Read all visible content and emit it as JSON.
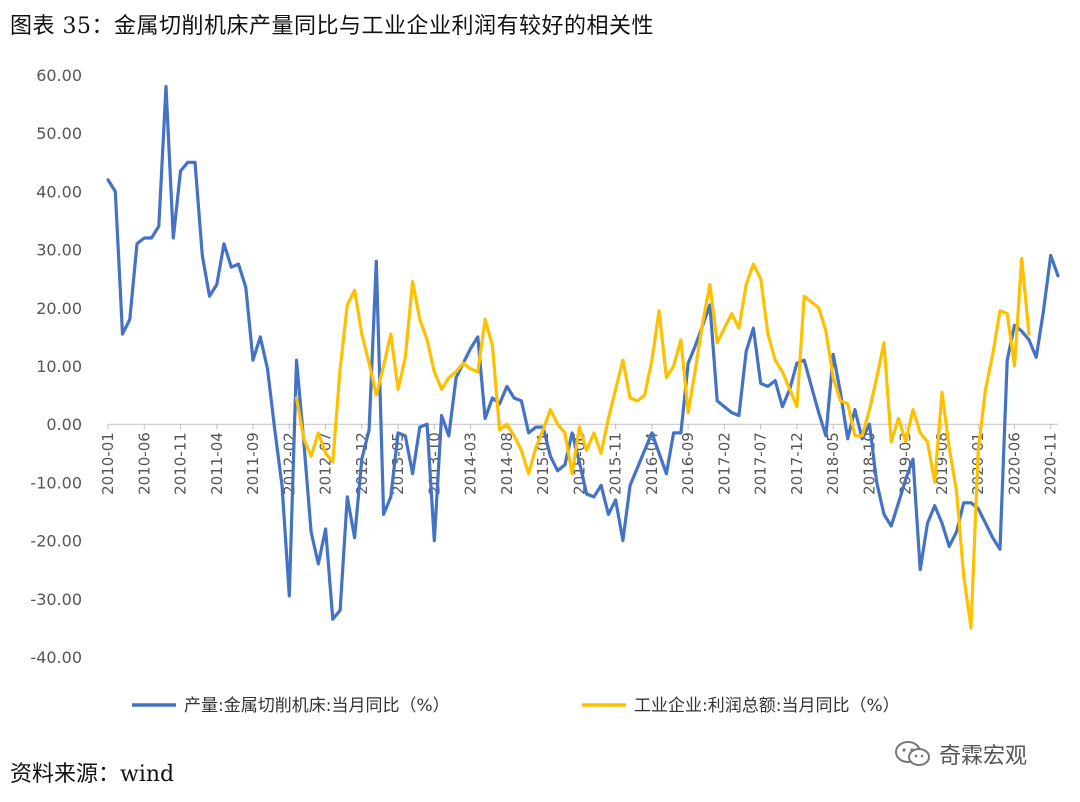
{
  "title": "图表 35：金属切削机床产量同比与工业企业利润有较好的相关性",
  "source": "资料来源：wind",
  "watermark": {
    "text": "奇霖宏观",
    "icon": "wechat-icon"
  },
  "chart_data": {
    "type": "line",
    "ylim": [
      -40,
      60
    ],
    "yticks": [
      "60.00",
      "50.00",
      "40.00",
      "30.00",
      "20.00",
      "10.00",
      "0.00",
      "-10.00",
      "-20.00",
      "-30.00",
      "-40.00"
    ],
    "xticks": [
      "2010-01",
      "2010-06",
      "2010-11",
      "2011-04",
      "2011-09",
      "2012-02",
      "2012-07",
      "2012-12",
      "2013-05",
      "2013-10",
      "2014-03",
      "2014-08",
      "2015-01",
      "2015-06",
      "2015-11",
      "2016-04",
      "2016-09",
      "2017-02",
      "2017-07",
      "2017-12",
      "2018-05",
      "2018-10",
      "2019-03",
      "2019-08",
      "2020-01",
      "2020-06",
      "2020-11"
    ],
    "x_start": "2010-01",
    "series": [
      {
        "name": "产量:金属切削机床:当月同比（%）",
        "color": "#4472C4",
        "values": [
          42,
          40,
          15.5,
          18,
          31,
          32,
          32,
          34,
          58,
          32,
          43.5,
          45,
          45,
          29,
          22,
          24,
          31,
          27,
          27.5,
          23.5,
          11,
          15,
          9.5,
          -1,
          -10.5,
          -29.5,
          11,
          -3,
          -18.5,
          -24,
          -18,
          -33.5,
          -32,
          -12.5,
          -19.5,
          -6,
          -1,
          28,
          -15.5,
          -12.5,
          -1.5,
          -2,
          -8.5,
          -0.5,
          0,
          -20,
          1.5,
          -2,
          8,
          10.5,
          13,
          15,
          1,
          4.5,
          3.5,
          6.5,
          4.5,
          4,
          -1.5,
          -0.5,
          -0.5,
          -5.5,
          -8,
          -7,
          -1.5,
          -6.5,
          -12,
          -12.5,
          -10.5,
          -15.5,
          -13,
          -20,
          -10.5,
          -7.5,
          -4.5,
          -1.5,
          -5,
          -8.5,
          -1.5,
          -1.5,
          10.5,
          13.5,
          17,
          20.5,
          4,
          3,
          2,
          1.5,
          12.5,
          16.5,
          7,
          6.5,
          7.5,
          3,
          6,
          10.5,
          11,
          6.5,
          2,
          -2,
          12,
          5.5,
          -2.5,
          2.5,
          -2.5,
          0,
          -10,
          -15.5,
          -17.5,
          -13.5,
          -9.5,
          -6,
          -25,
          -17,
          -14,
          -17,
          -21,
          -18.5,
          -13.5,
          -13.5,
          -14.5,
          -17,
          -19.5,
          -21.5,
          11,
          17,
          16,
          14.5,
          11.5,
          19.5,
          29,
          25.5
        ]
      },
      {
        "name": "工业企业:利润总额:当月同比（%）",
        "color": "#FFC000",
        "values": [
          null,
          null,
          null,
          null,
          null,
          null,
          null,
          null,
          null,
          null,
          null,
          null,
          null,
          null,
          null,
          null,
          null,
          null,
          null,
          null,
          null,
          null,
          null,
          null,
          null,
          null,
          4.5,
          -2.5,
          -5.5,
          -1.5,
          -5,
          -6.5,
          9.5,
          20.5,
          23,
          15.5,
          10.5,
          5,
          10,
          15.5,
          6,
          11.5,
          24.5,
          18,
          14.5,
          9,
          6,
          8,
          9,
          10.5,
          9.5,
          9,
          18,
          13.5,
          -1,
          0,
          -2,
          -4.5,
          -8.5,
          -4,
          -1,
          2.5,
          0,
          -1.5,
          -8.5,
          -0.5,
          -4.5,
          -1.5,
          -5,
          1,
          6,
          11,
          4.5,
          4,
          5,
          11,
          19.5,
          8,
          10,
          14.5,
          2,
          9.5,
          17.5,
          24,
          14,
          16.5,
          19,
          16.5,
          24,
          27.5,
          25,
          15.5,
          11,
          9,
          6,
          3,
          22,
          21,
          20,
          16,
          8,
          4,
          3.5,
          -2,
          -2,
          2.5,
          8,
          14,
          -3,
          1,
          -3,
          2.5,
          -1.5,
          -3,
          -10,
          5.5,
          -4,
          -11.5,
          -26,
          -35,
          -4.5,
          6,
          12,
          19.5,
          19,
          10,
          28.5,
          15.5
        ]
      }
    ]
  }
}
